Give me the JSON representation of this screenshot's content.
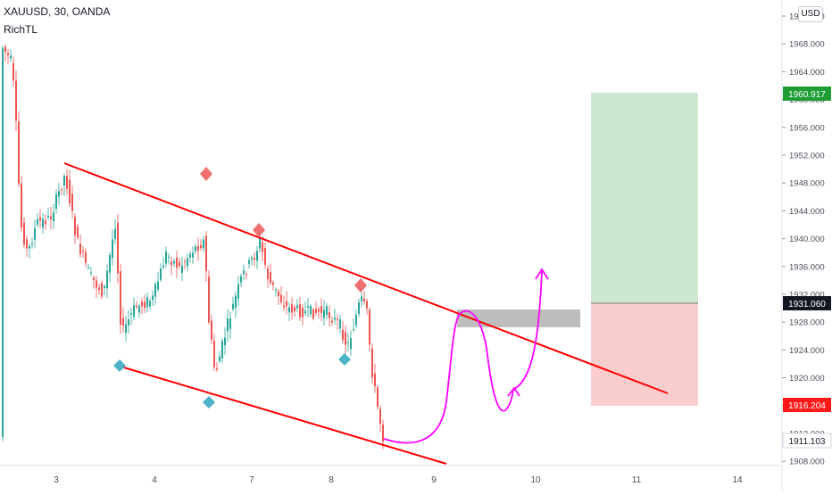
{
  "header": {
    "symbol_line": "XAUUSD, 30, OANDA",
    "indicator": "RichTL"
  },
  "currency_badge": "USD",
  "price_axis": {
    "ticks": [
      "1972.000",
      "1968.000",
      "1964.000",
      "1960.000",
      "1956.000",
      "1952.000",
      "1948.000",
      "1944.000",
      "1940.000",
      "1936.000",
      "1932.000",
      "1928.000",
      "1924.000",
      "1920.000",
      "1916.000",
      "1912.000",
      "1908.000"
    ]
  },
  "price_labels": {
    "target": "1960.917",
    "entry": "1931.060",
    "stop": "1916.204",
    "current": "1911.103"
  },
  "time_axis": {
    "ticks": [
      "3",
      "4",
      "7",
      "8",
      "9",
      "10",
      "11",
      "14"
    ]
  },
  "colors": {
    "up": "#26a69a",
    "down": "#ef5350",
    "trendline": "#ff0000",
    "projection": "#ff00ff",
    "target_zone": "#c8e6c9",
    "stop_zone": "#f8c8c8",
    "entry_box": "#bdbdbd",
    "target_label": "#1e9c35",
    "stop_label": "#ff1a1a",
    "entry_label": "#131722"
  }
}
